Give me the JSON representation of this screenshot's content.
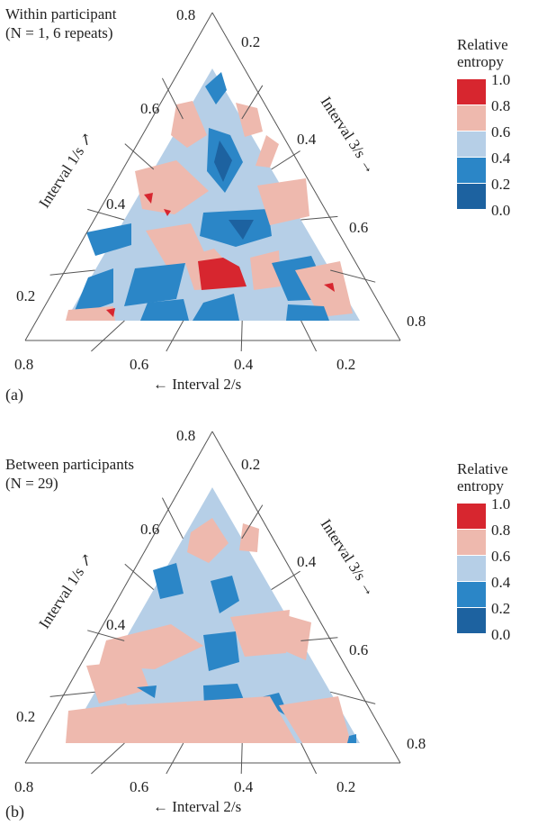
{
  "chart_data": [
    {
      "type": "heatmap",
      "panel_label": "(a)",
      "title_lines": [
        "Within participant",
        "(N = 1, 6 repeats)"
      ],
      "axis_left_label": "Interval 1/s ↗",
      "axis_right_label": "Interval 3/s →",
      "axis_bottom_label": "← Interval 2/s",
      "left_ticks": [
        "0.8",
        "0.6",
        "0.4",
        "0.2"
      ],
      "bottom_ticks": [
        "0.8",
        "0.6",
        "0.4",
        "0.2"
      ],
      "right_ticks": [
        "0.2",
        "0.4",
        "0.6",
        "0.8"
      ],
      "legend_title": "Relative entropy",
      "legend_levels": [
        "1.0",
        "0.8",
        "0.6",
        "0.4",
        "0.2",
        "0.0"
      ],
      "legend_colors": [
        "#d7262f",
        "#eeb9ae",
        "#b6cfe7",
        "#2b86c7",
        "#1d62a0"
      ]
    },
    {
      "type": "heatmap",
      "panel_label": "(b)",
      "title_lines": [
        "Between participants",
        "(N = 29)"
      ],
      "axis_left_label": "Interval 1/s ↗",
      "axis_right_label": "Interval 3/s →",
      "axis_bottom_label": "← Interval 2/s",
      "left_ticks": [
        "0.8",
        "0.6",
        "0.4",
        "0.2"
      ],
      "bottom_ticks": [
        "0.8",
        "0.6",
        "0.4",
        "0.2"
      ],
      "right_ticks": [
        "0.2",
        "0.4",
        "0.6",
        "0.8"
      ],
      "legend_title": "Relative entropy",
      "legend_levels": [
        "1.0",
        "0.8",
        "0.6",
        "0.4",
        "0.2",
        "0.0"
      ],
      "legend_colors": [
        "#d7262f",
        "#eeb9ae",
        "#b6cfe7",
        "#2b86c7",
        "#1d62a0"
      ]
    }
  ]
}
